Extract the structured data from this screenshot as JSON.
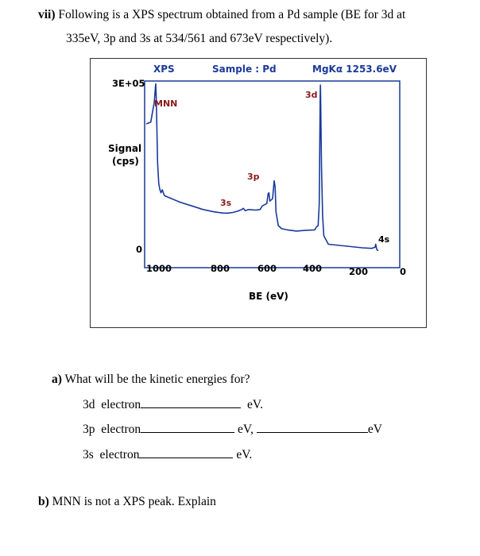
{
  "question": {
    "number": "vii)",
    "line1": "Following is a XPS spectrum obtained from a Pd sample (BE for 3d at",
    "line2": "335eV, 3p and 3s at 534/561 and 673eV respectively)."
  },
  "chart_data": {
    "type": "line",
    "header": {
      "left": "XPS",
      "middle": "Sample : Pd",
      "right": "MgKα 1253.6eV"
    },
    "xlabel": "BE (eV)",
    "ylabel": "Signal\n(cps)",
    "ylabel_line1": "Signal",
    "ylabel_line2": "(cps)",
    "x_reversed": true,
    "xlim": [
      1100,
      -10
    ],
    "ylim": [
      0,
      300000
    ],
    "xticks": [
      "1000",
      "800",
      "600",
      "400",
      "200",
      "0"
    ],
    "ytick_top": "3E+05",
    "ytick_bottom": "0",
    "peak_labels": {
      "mnn": "MNN",
      "p3d": "3d",
      "p3p": "3p",
      "p3s": "3s",
      "p4s": "4s"
    },
    "series": [
      {
        "color": "#1a3a9a",
        "x": [
          1100,
          1080,
          1070,
          1065,
          1060,
          1058,
          1056,
          1050,
          1045,
          1040,
          1035,
          1030,
          1020,
          1000,
          950,
          900,
          850,
          800,
          760,
          740,
          720,
          700,
          680,
          673,
          665,
          650,
          620,
          600,
          590,
          570,
          565,
          561,
          557,
          545,
          538,
          534,
          530,
          520,
          505,
          480,
          440,
          405,
          360,
          352,
          345,
          340,
          336,
          335,
          334,
          330,
          325,
          320,
          300,
          250,
          200,
          150,
          110,
          95,
          92,
          88,
          85,
          80
        ],
        "y": [
          215000,
          218000,
          240000,
          250000,
          275000,
          282000,
          260000,
          150000,
          115000,
          105000,
          100000,
          105000,
          95000,
          92000,
          84000,
          78000,
          72000,
          68000,
          66000,
          66000,
          67000,
          69000,
          72000,
          74000,
          70000,
          72000,
          71000,
          72000,
          78000,
          82000,
          98000,
          100000,
          86000,
          90000,
          120000,
          110000,
          68000,
          45000,
          40000,
          38000,
          36000,
          37000,
          38000,
          43000,
          45000,
          80000,
          260000,
          280000,
          265000,
          140000,
          60000,
          28000,
          14000,
          12000,
          10000,
          8000,
          7000,
          9000,
          14000,
          6000,
          4000,
          3500
        ]
      }
    ]
  },
  "part_a": {
    "label": "a)",
    "text": "What will be the kinetic energies for?",
    "rows": [
      {
        "name": "3d  electron",
        "unit1": "eV.",
        "unit2": ""
      },
      {
        "name": "3p  electron",
        "unit1": "eV,",
        "unit2": "eV"
      },
      {
        "name": "3s  electron",
        "unit1": "eV.",
        "unit2": ""
      }
    ]
  },
  "part_b": {
    "label": "b)",
    "text": "MNN is not a XPS peak. Explain"
  }
}
